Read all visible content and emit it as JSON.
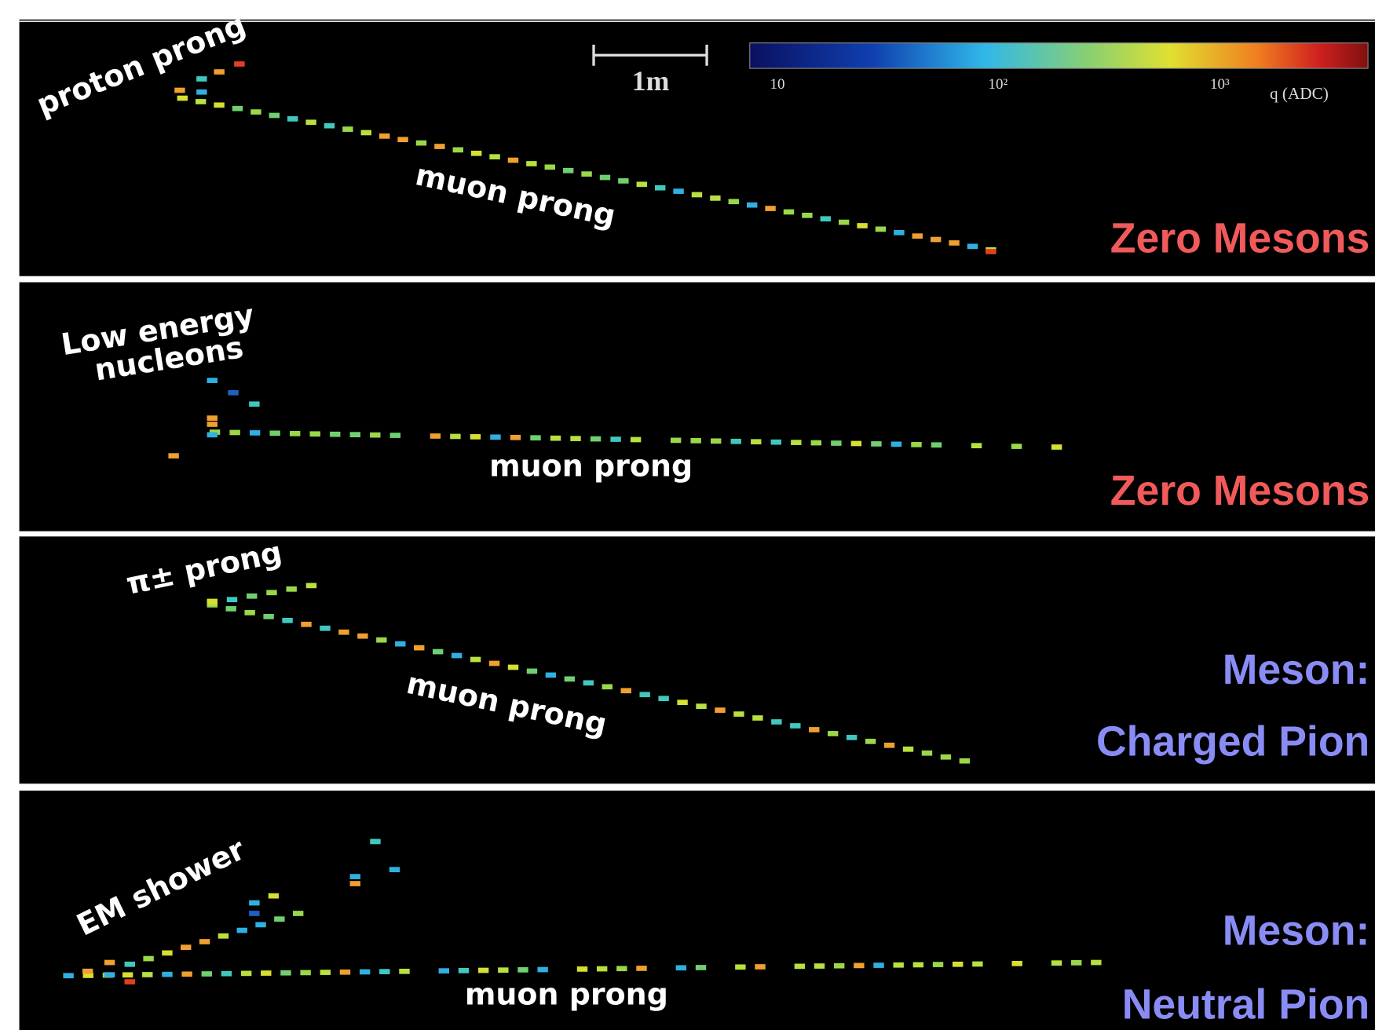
{
  "scale_bar": "1m",
  "colorbar": {
    "ticks": [
      "10",
      "10²",
      "10³"
    ],
    "label": "q (ADC)"
  },
  "panels": [
    {
      "annotations": [
        "proton prong",
        "muon prong"
      ],
      "label": [
        "Zero Mesons"
      ]
    },
    {
      "annotations": [
        "Low energy",
        "nucleons",
        "muon prong"
      ],
      "label": [
        "Zero Mesons"
      ]
    },
    {
      "annotations": [
        "π± prong",
        "muon prong"
      ],
      "label": [
        "Meson:",
        "Charged Pion"
      ]
    },
    {
      "annotations": [
        "EM shower",
        "muon prong"
      ],
      "label": [
        "Meson:",
        "Neutral Pion"
      ]
    }
  ]
}
